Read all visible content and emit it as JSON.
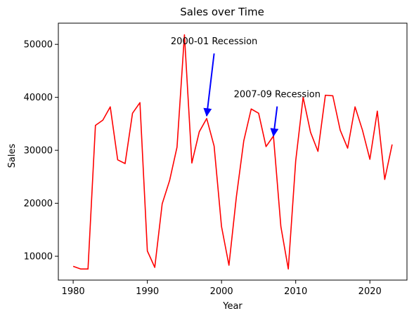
{
  "chart_data": {
    "type": "line",
    "title": "Sales over Time",
    "xlabel": "Year",
    "ylabel": "Sales",
    "xlim": [
      1978,
      2025
    ],
    "ylim": [
      5500,
      54000
    ],
    "xticks": [
      1980,
      1990,
      2000,
      2010,
      2020
    ],
    "yticks": [
      10000,
      20000,
      30000,
      40000,
      50000
    ],
    "grid": false,
    "series": [
      {
        "color": "#ff0000",
        "x": [
          1980,
          1981,
          1982,
          1983,
          1984,
          1985,
          1986,
          1987,
          1988,
          1989,
          1990,
          1991,
          1992,
          1993,
          1994,
          1995,
          1996,
          1997,
          1998,
          1999,
          2000,
          2001,
          2002,
          2003,
          2004,
          2005,
          2006,
          2007,
          2008,
          2009,
          2010,
          2011,
          2012,
          2013,
          2014,
          2015,
          2016,
          2017,
          2018,
          2019,
          2020,
          2021,
          2022,
          2023
        ],
        "y": [
          8100,
          7600,
          7600,
          34700,
          35700,
          38200,
          28200,
          27500,
          37000,
          39000,
          11000,
          7900,
          19900,
          24300,
          30600,
          51800,
          27600,
          33500,
          36000,
          30800,
          15600,
          8300,
          21200,
          31800,
          37800,
          37000,
          30700,
          32700,
          15600,
          7600,
          28000,
          40000,
          33400,
          29800,
          40400,
          40300,
          33800,
          30400,
          38200,
          33800,
          28300,
          37400,
          24500,
          31100
        ]
      }
    ],
    "annotations": [
      {
        "text": "2000-01 Recession",
        "x": 1998,
        "y": 36500,
        "text_x": 1999,
        "text_y": 50000,
        "arrow_color": "#0000ff"
      },
      {
        "text": "2007-09 Recession",
        "x": 2007,
        "y": 32700,
        "text_x": 2007.5,
        "text_y": 40000,
        "arrow_color": "#0000ff"
      }
    ]
  }
}
